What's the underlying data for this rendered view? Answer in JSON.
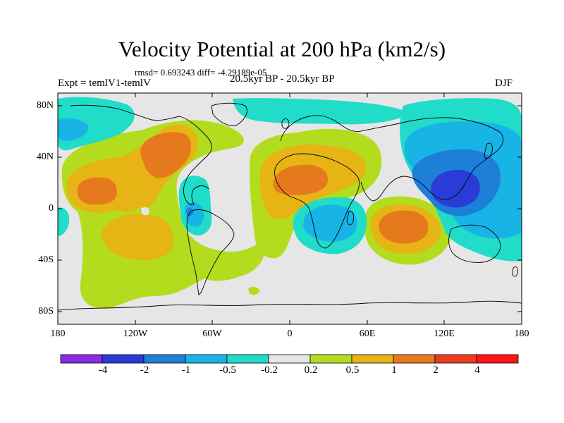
{
  "title": "Velocity Potential at 200 hPa (km2/s)",
  "stats": "rmsd= 0.693243 diff= -4.29189e-05",
  "experiment": "Expt = temlV1-temlV",
  "period": "20.5kyr BP - 20.5kyr BP",
  "season": "DJF",
  "lat_ticks": [
    "80N",
    "40N",
    "0",
    "40S",
    "80S"
  ],
  "lon_ticks": [
    "180",
    "120W",
    "60W",
    "0",
    "60E",
    "120E",
    "180"
  ],
  "colorbar": {
    "labels": [
      "-4",
      "-2",
      "-1",
      "-0.5",
      "-0.2",
      "0.2",
      "0.5",
      "1",
      "2",
      "4"
    ],
    "colors": [
      "#8a2be2",
      "#2a3cd8",
      "#1e7fd8",
      "#18b4e6",
      "#20dcc8",
      "#e6e6e6",
      "#b4dc1e",
      "#e6b414",
      "#e6781e",
      "#ee3c20",
      "#ff1414"
    ]
  },
  "palette": {
    "neutral": "#e6e6e6",
    "pos_light": "#b4dc1e",
    "pos_mid": "#e6b414",
    "pos_strong": "#e6781e",
    "neg_light": "#20dcc8",
    "neg_mid": "#18b4e6",
    "neg_strong": "#1e7fd8",
    "neg_max": "#2a3cd8"
  }
}
